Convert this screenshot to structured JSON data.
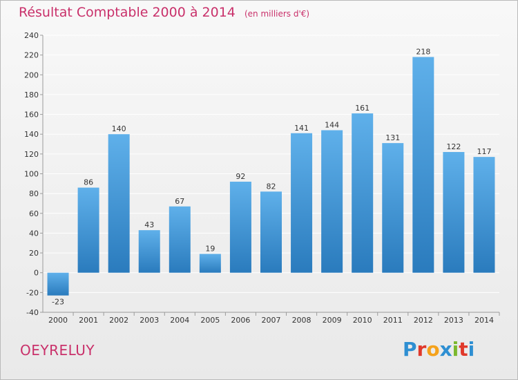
{
  "header": {
    "title": "Résultat Comptable 2000 à 2014",
    "subtitle": "(en milliers d'€)"
  },
  "footer": {
    "commune": "OEYRELUY",
    "brand": "Proxiti"
  },
  "colors": {
    "title": "#c9306a",
    "bar_top": "#5fb0ea",
    "bar_bottom": "#2a7bbd",
    "grid": "#ffffff"
  },
  "chart_data": {
    "type": "bar",
    "title": "Résultat Comptable 2000 à 2014",
    "ylabel": "en milliers d'€",
    "xlabel": "",
    "categories": [
      "2000",
      "2001",
      "2002",
      "2003",
      "2004",
      "2005",
      "2006",
      "2007",
      "2008",
      "2009",
      "2010",
      "2011",
      "2012",
      "2013",
      "2014"
    ],
    "values": [
      -23,
      86,
      140,
      43,
      67,
      19,
      92,
      82,
      141,
      144,
      161,
      131,
      218,
      122,
      117
    ],
    "ylim": [
      -40,
      240
    ],
    "yticks": [
      -40,
      -20,
      0,
      20,
      40,
      60,
      80,
      100,
      120,
      140,
      160,
      180,
      200,
      220,
      240
    ],
    "grid": true
  }
}
